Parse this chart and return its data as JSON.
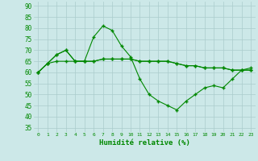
{
  "title": "",
  "xlabel": "Humidité relative (%)",
  "ylabel": "",
  "bg_color": "#cce8e8",
  "grid_color": "#aacccc",
  "line_color": "#008800",
  "xlim": [
    -0.5,
    23.5
  ],
  "ylim": [
    33,
    92
  ],
  "yticks": [
    35,
    40,
    45,
    50,
    55,
    60,
    65,
    70,
    75,
    80,
    85,
    90
  ],
  "xticks": [
    0,
    1,
    2,
    3,
    4,
    5,
    6,
    7,
    8,
    9,
    10,
    11,
    12,
    13,
    14,
    15,
    16,
    17,
    18,
    19,
    20,
    21,
    22,
    23
  ],
  "line1": [
    60,
    64,
    68,
    70,
    65,
    65,
    76,
    81,
    79,
    72,
    67,
    57,
    50,
    47,
    45,
    43,
    47,
    50,
    53,
    54,
    53,
    57,
    61,
    62
  ],
  "line2": [
    60,
    64,
    65,
    65,
    65,
    65,
    65,
    66,
    66,
    66,
    66,
    65,
    65,
    65,
    65,
    64,
    63,
    63,
    62,
    62,
    62,
    61,
    61,
    61
  ],
  "line3": [
    60,
    64,
    68,
    70,
    65,
    65,
    65,
    66,
    66,
    66,
    66,
    65,
    65,
    65,
    65,
    64,
    63,
    63,
    62,
    62,
    62,
    61,
    61,
    61
  ]
}
